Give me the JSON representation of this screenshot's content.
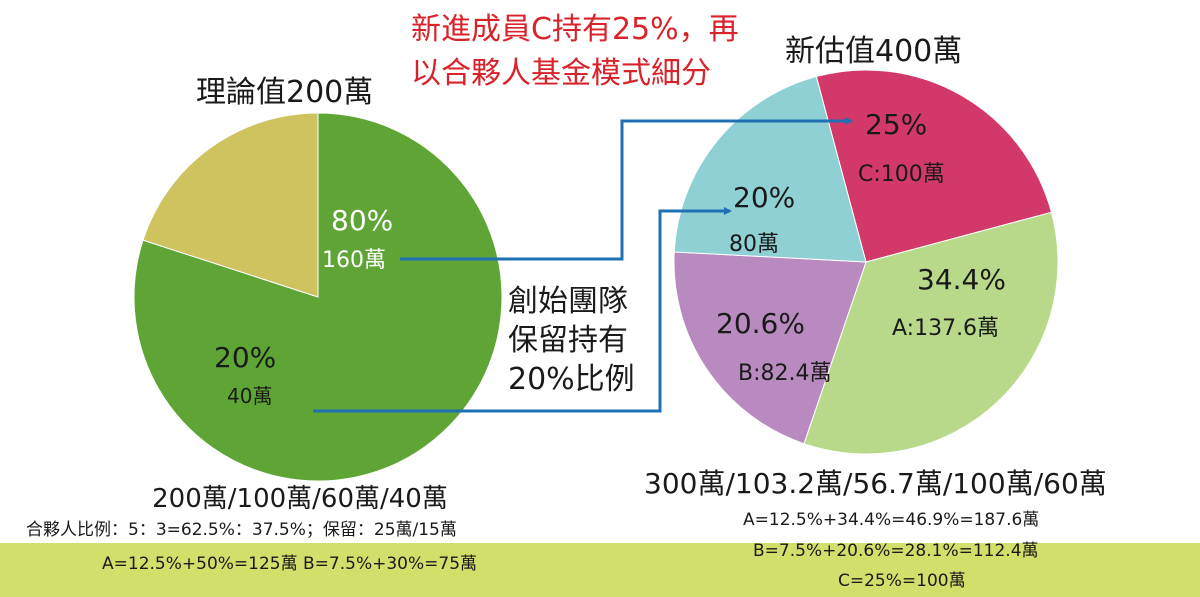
{
  "chart_data": [
    {
      "type": "pie",
      "title": "理論值200萬",
      "slices": [
        {
          "pct_label": "80%",
          "amount_label": "160萬",
          "value": 80,
          "color": "#5ea535"
        },
        {
          "pct_label": "20%",
          "amount_label": "40萬",
          "value": 20,
          "color": "#cfc35f"
        }
      ]
    },
    {
      "type": "pie",
      "title": "新估值400萬",
      "slices": [
        {
          "pct_label": "25%",
          "amount_label": "C:100萬",
          "value": 25,
          "color": "#d23868"
        },
        {
          "pct_label": "34.4%",
          "amount_label": "A:137.6萬",
          "value": 34.4,
          "color": "#b8d98a"
        },
        {
          "pct_label": "20.6%",
          "amount_label": "B:82.4萬",
          "value": 20.6,
          "color": "#b98ac0"
        },
        {
          "pct_label": "20%",
          "amount_label": "80萬",
          "value": 20,
          "color": "#8fd0d4"
        }
      ]
    }
  ],
  "annotations": {
    "red_note_line1": "新進成員C持有25%，再",
    "red_note_line2": "以合夥人基金模式細分",
    "founder_line1": "創始團隊",
    "founder_line2": "保留持有",
    "founder_line3": "20%比例"
  },
  "left_summary": {
    "totals": "200萬/100萬/60萬/40萬",
    "ratio": "合夥人比例：5：3=62.5%：37.5%；保留：25萬/15萬",
    "formula": "A=12.5%+50%=125萬  B=7.5%+30%=75萬"
  },
  "right_summary": {
    "totals": "300萬/103.2萬/56.7萬/100萬/60萬",
    "formula_a": "A=12.5%+34.4%=46.9%=187.6萬",
    "formula_b": "B=7.5%+20.6%=28.1%=112.4萬",
    "formula_c": "C=25%=100萬"
  },
  "colors": {
    "arrow": "#1f6fb3",
    "red_note": "#d9232b",
    "footer_band": "#d3df6b"
  }
}
